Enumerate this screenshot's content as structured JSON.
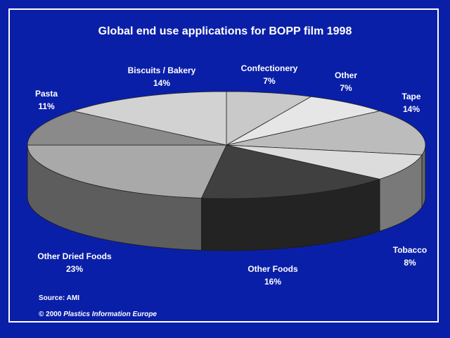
{
  "title": "Global end use applications for BOPP film 1998",
  "source": "Source: AMI",
  "copyright": {
    "prefix": "© 2000",
    "org": "Plastics Information Europe"
  },
  "chart_data": {
    "type": "pie",
    "title": "Global end use applications for BOPP film 1998",
    "unit": "%",
    "slices": [
      {
        "label": "Confectionery",
        "value": 7,
        "value_label": "7%",
        "color": "#c9c9c9"
      },
      {
        "label": "Other",
        "value": 7,
        "value_label": "7%",
        "color": "#e6e6e6"
      },
      {
        "label": "Tape",
        "value": 14,
        "value_label": "14%",
        "color": "#bcbcbc"
      },
      {
        "label": "Tobacco",
        "value": 8,
        "value_label": "8%",
        "color": "#dcdcdc"
      },
      {
        "label": "Other Foods",
        "value": 16,
        "value_label": "16%",
        "color": "#404040"
      },
      {
        "label": "Other Dried Foods",
        "value": 23,
        "value_label": "23%",
        "color": "#a9a9a9"
      },
      {
        "label": "Pasta",
        "value": 11,
        "value_label": "11%",
        "color": "#8a8a8a"
      },
      {
        "label": "Biscuits / Bakery",
        "value": 14,
        "value_label": "14%",
        "color": "#d2d2d2"
      }
    ]
  }
}
